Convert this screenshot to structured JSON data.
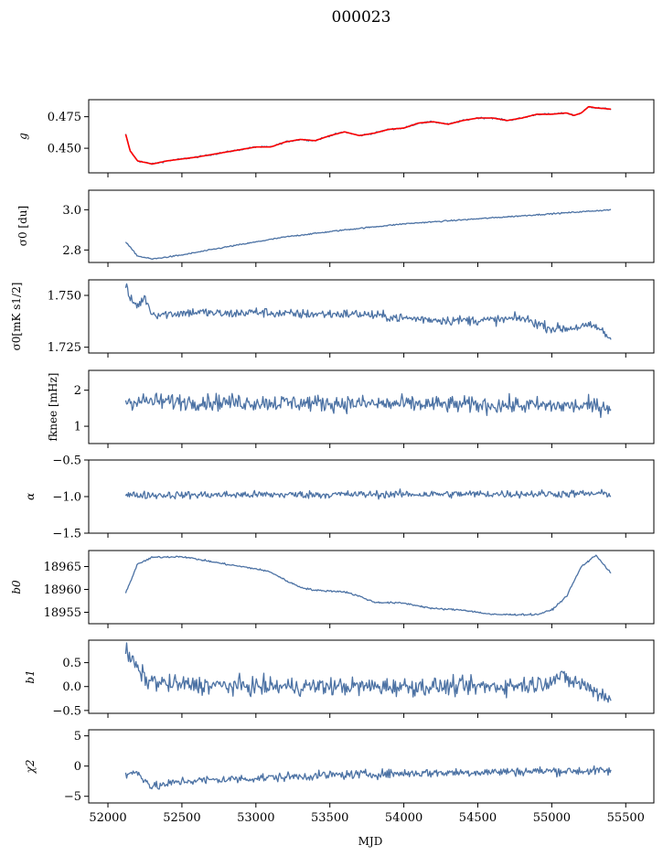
{
  "title": "000023",
  "x_axis": {
    "label": "MJD",
    "ticks": [
      52000,
      52500,
      53000,
      53500,
      54000,
      54500,
      55000,
      55500
    ],
    "tick_labels": [
      "52000",
      "52500",
      "53000",
      "53500",
      "54000",
      "54500",
      "55000",
      "55500"
    ],
    "range": [
      51870,
      55690
    ]
  },
  "colors": {
    "series": "#4c72a4",
    "fit": "#ff0000",
    "frame": "#000000",
    "background": "#ffffff"
  },
  "chart_data": [
    {
      "type": "line",
      "panel": "g",
      "ylabel": "g",
      "ylim": [
        0.4305,
        0.4885
      ],
      "yticks": [
        0.45,
        0.475
      ],
      "ytick_labels": [
        "0.450",
        "0.475"
      ],
      "series": [
        {
          "color": "#4c72a4",
          "x": [
            52120,
            52150,
            52200,
            52300,
            52400,
            52600,
            52800,
            53000,
            53100,
            53200,
            53300,
            53400,
            53500,
            53600,
            53700,
            53800,
            53900,
            54000,
            54100,
            54200,
            54300,
            54400,
            54500,
            54600,
            54700,
            54800,
            54900,
            55000,
            55100,
            55150,
            55200,
            55250,
            55300,
            55400
          ],
          "y": [
            0.461,
            0.448,
            0.44,
            0.4375,
            0.44,
            0.443,
            0.447,
            0.451,
            0.451,
            0.455,
            0.457,
            0.456,
            0.46,
            0.463,
            0.46,
            0.462,
            0.465,
            0.466,
            0.47,
            0.471,
            0.469,
            0.472,
            0.474,
            0.474,
            0.472,
            0.474,
            0.477,
            0.477,
            0.478,
            0.476,
            0.478,
            0.483,
            0.482,
            0.481
          ]
        },
        {
          "color": "#ff0000",
          "x": [
            52120,
            52150,
            52200,
            52300,
            52400,
            52600,
            52800,
            53000,
            53100,
            53200,
            53300,
            53400,
            53500,
            53600,
            53700,
            53800,
            53900,
            54000,
            54100,
            54200,
            54300,
            54400,
            54500,
            54600,
            54700,
            54800,
            54900,
            55000,
            55100,
            55150,
            55200,
            55250,
            55300,
            55400
          ],
          "y": [
            0.461,
            0.448,
            0.44,
            0.4375,
            0.44,
            0.443,
            0.447,
            0.451,
            0.451,
            0.455,
            0.457,
            0.456,
            0.46,
            0.463,
            0.46,
            0.462,
            0.465,
            0.466,
            0.47,
            0.471,
            0.469,
            0.472,
            0.474,
            0.474,
            0.472,
            0.474,
            0.477,
            0.477,
            0.478,
            0.476,
            0.478,
            0.483,
            0.482,
            0.481
          ]
        }
      ]
    },
    {
      "type": "line",
      "panel": "sigma0_du",
      "ylabel": "σ0 [du]",
      "ylim": [
        2.738,
        3.097
      ],
      "yticks": [
        2.8,
        3.0
      ],
      "ytick_labels": [
        "2.8",
        "3.0"
      ],
      "series": [
        {
          "color": "#4c72a4",
          "x": [
            52120,
            52200,
            52300,
            52500,
            52800,
            53200,
            53600,
            54000,
            54400,
            54800,
            55100,
            55400
          ],
          "y": [
            2.84,
            2.77,
            2.755,
            2.775,
            2.815,
            2.865,
            2.9,
            2.93,
            2.95,
            2.97,
            2.985,
            3.0
          ]
        }
      ]
    },
    {
      "type": "line",
      "panel": "sigma0_mK",
      "ylabel": "σ0[mK s1/2]",
      "ylim": [
        1.7222,
        1.7575
      ],
      "yticks": [
        1.725,
        1.75
      ],
      "ytick_labels": [
        "1.725",
        "1.750"
      ],
      "series": [
        {
          "color": "#4c72a4",
          "x": [
            52120,
            52150,
            52200,
            52250,
            52300,
            52400,
            52600,
            52800,
            53000,
            53200,
            53500,
            53700,
            54000,
            54300,
            54600,
            54800,
            55000,
            55100,
            55200,
            55300,
            55400
          ],
          "y": [
            1.755,
            1.748,
            1.745,
            1.749,
            1.741,
            1.741,
            1.742,
            1.741,
            1.742,
            1.741,
            1.741,
            1.741,
            1.739,
            1.738,
            1.738,
            1.739,
            1.734,
            1.734,
            1.735,
            1.735,
            1.729
          ]
        }
      ]
    },
    {
      "type": "line",
      "panel": "fknee",
      "ylabel": "fknee [mHz]",
      "ylim": [
        0.52,
        2.55
      ],
      "yticks": [
        1,
        2
      ],
      "ytick_labels": [
        "1",
        "2"
      ],
      "series": [
        {
          "color": "#4c72a4",
          "x": [
            52120,
            55400
          ],
          "y": [
            1.7,
            1.55
          ],
          "noise": 0.22
        }
      ]
    },
    {
      "type": "line",
      "panel": "alpha",
      "ylabel": "α",
      "ylim": [
        -1.5,
        -0.5
      ],
      "yticks": [
        -1.5,
        -1.0,
        -0.5
      ],
      "ytick_labels": [
        "−1.5",
        "−1.0",
        "−0.5"
      ],
      "series": [
        {
          "color": "#4c72a4",
          "x": [
            52120,
            55400
          ],
          "y": [
            -0.98,
            -0.96
          ],
          "noise": 0.05
        }
      ]
    },
    {
      "type": "line",
      "panel": "b0",
      "ylabel": "b0",
      "ylim": [
        18952.5,
        18968.5
      ],
      "yticks": [
        18955,
        18960,
        18965
      ],
      "ytick_labels": [
        "18955",
        "18960",
        "18965"
      ],
      "series": [
        {
          "color": "#4c72a4",
          "x": [
            52120,
            52200,
            52300,
            52500,
            52800,
            53000,
            53100,
            53200,
            53300,
            53400,
            53600,
            53700,
            53800,
            54000,
            54200,
            54400,
            54600,
            54800,
            54900,
            55000,
            55100,
            55200,
            55300,
            55400
          ],
          "y": [
            18959.2,
            18965.5,
            18967,
            18967.2,
            18965.5,
            18964.5,
            18963.8,
            18962,
            18960.5,
            18959.8,
            18959.5,
            18958.5,
            18957.2,
            18957,
            18955.8,
            18955.5,
            18954.5,
            18954.5,
            18954.5,
            18955.5,
            18958.5,
            18965,
            18967.5,
            18963.5
          ]
        }
      ]
    },
    {
      "type": "line",
      "panel": "b1",
      "ylabel": "b1",
      "ylim": [
        -0.56,
        0.97
      ],
      "yticks": [
        -0.5,
        0.0,
        0.5
      ],
      "ytick_labels": [
        "−0.5",
        "0.0",
        "0.5"
      ],
      "series": [
        {
          "color": "#4c72a4",
          "x": [
            52120,
            52150,
            52250,
            52400,
            53000,
            54000,
            54600,
            54900,
            55050,
            55200,
            55400
          ],
          "y": [
            0.75,
            0.6,
            0.15,
            0.05,
            0.0,
            0.0,
            0.0,
            0.05,
            0.2,
            0.05,
            -0.25
          ],
          "noise": 0.18
        }
      ]
    },
    {
      "type": "line",
      "panel": "chi2",
      "ylabel": "χ2",
      "ylim": [
        -6.1,
        6.0
      ],
      "yticks": [
        -5,
        0,
        5
      ],
      "ytick_labels": [
        "−5",
        "0",
        "5"
      ],
      "series": [
        {
          "color": "#4c72a4",
          "x": [
            52120,
            52200,
            52300,
            52500,
            53000,
            53500,
            54000,
            54500,
            55000,
            55400
          ],
          "y": [
            -1.5,
            -1.0,
            -3.5,
            -2.5,
            -2.0,
            -1.5,
            -1.2,
            -1.0,
            -0.8,
            -0.8
          ],
          "noise": 0.7
        }
      ]
    }
  ]
}
